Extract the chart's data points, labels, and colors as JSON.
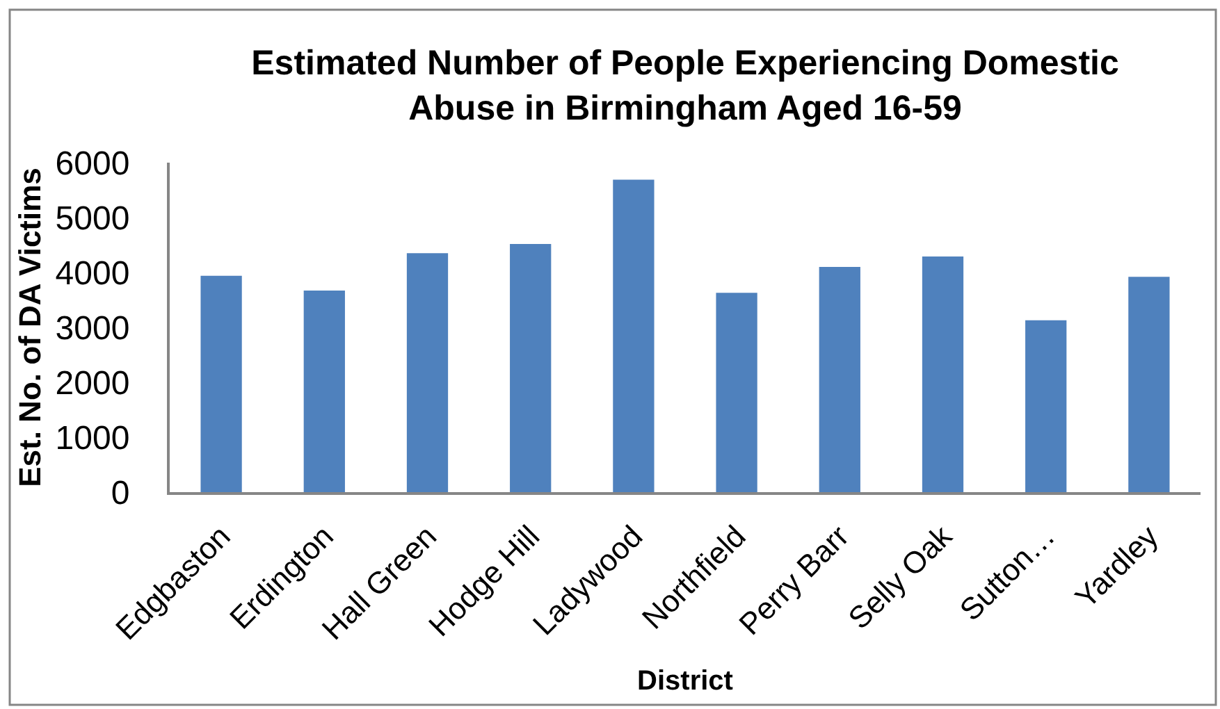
{
  "chart_data": {
    "type": "bar",
    "title": "Estimated Number of People Experiencing Domestic Abuse in Birmingham Aged 16-59",
    "xlabel": "District",
    "ylabel": "Est. No. of DA Victims",
    "categories": [
      "Edgbaston",
      "Erdington",
      "Hall Green",
      "Hodge Hill",
      "Ladywood",
      "Northfield",
      "Perry Barr",
      "Selly Oak",
      "Sutton…",
      "Yardley"
    ],
    "values": [
      3940,
      3670,
      4350,
      4520,
      5690,
      3630,
      4100,
      4290,
      3130,
      3920
    ],
    "color": "#4f81bd",
    "ylim": [
      0,
      6000
    ],
    "yticks": [
      0,
      1000,
      2000,
      3000,
      4000,
      5000,
      6000
    ],
    "grid": false
  }
}
